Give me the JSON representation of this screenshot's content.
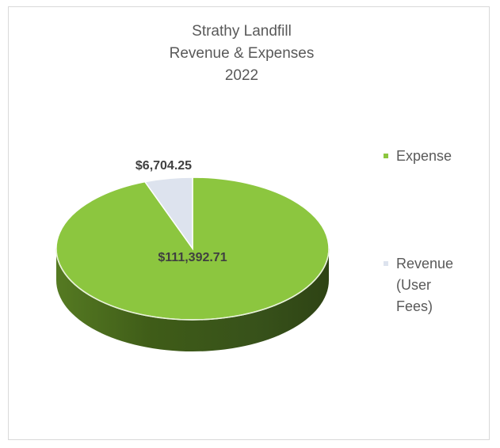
{
  "chart_data": {
    "type": "pie",
    "title_lines": [
      "Strathy Landfill",
      "Revenue & Expenses",
      "2022"
    ],
    "series": [
      {
        "name": "Expense",
        "value": 111392.71,
        "label": "$111,392.71",
        "color": "#8cc63f"
      },
      {
        "name": "Revenue (User Fees)",
        "value": 6704.25,
        "label": "$6,704.25",
        "color": "#dde3ee"
      }
    ],
    "legend": {
      "position": "right",
      "items": [
        {
          "lines": [
            "Expense"
          ],
          "color": "#8cc63f"
        },
        {
          "lines": [
            "Revenue",
            "(User",
            "Fees)"
          ],
          "color": "#dde3ee"
        }
      ]
    }
  }
}
